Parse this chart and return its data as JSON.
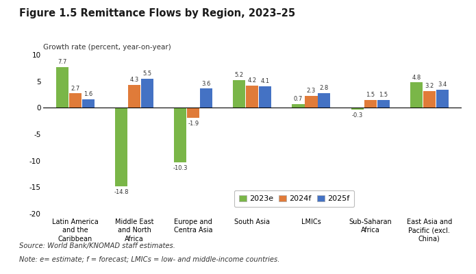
{
  "title": "Figure 1.5 Remittance Flows by Region, 2023–25",
  "ylabel": "Growth rate (percent, year-on-year)",
  "categories": [
    "Latin America\nand the\nCaribbean",
    "Middle East\nand North\nAfrica",
    "Europe and\nCentra Asia",
    "South Asia",
    "LMICs",
    "Sub-Saharan\nAfrica",
    "East Asia and\nPacific (excl.\nChina)"
  ],
  "series": {
    "2023e": [
      7.7,
      -14.8,
      -10.3,
      5.2,
      0.7,
      -0.3,
      4.8
    ],
    "2024f": [
      2.7,
      4.3,
      -1.9,
      4.2,
      2.3,
      1.5,
      3.2
    ],
    "2025f": [
      1.6,
      5.5,
      3.6,
      4.1,
      2.8,
      1.5,
      3.4
    ]
  },
  "colors": {
    "2023e": "#7ab648",
    "2024f": "#e07b39",
    "2025f": "#4472c4"
  },
  "ylim": [
    -20,
    10
  ],
  "yticks": [
    -20,
    -15,
    -10,
    -5,
    0,
    5,
    10
  ],
  "bar_width": 0.22,
  "source_text": "Source: World Bank/KNOMAD staff estimates.",
  "note_text": "Note: e= estimate; f = forecast; LMICs = low- and middle-income countries.",
  "background_color": "#ffffff"
}
